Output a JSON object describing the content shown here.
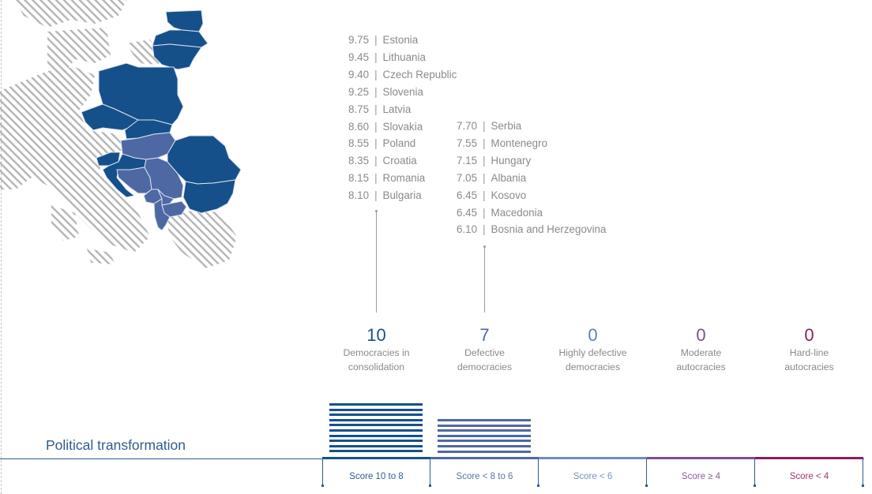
{
  "title": "Political transformation",
  "colors": {
    "dark_blue": "#16508a",
    "medium_blue": "#4e68a3",
    "light_blue": "#5a7fb8",
    "purple": "#7c4e8f",
    "magenta": "#8b1e5f",
    "hatch_gray": "#b5b5b5",
    "text_gray": "#8a8a8a"
  },
  "scores": {
    "consolidation": [
      {
        "score": "9.75",
        "country": "Estonia"
      },
      {
        "score": "9.45",
        "country": "Lithuania"
      },
      {
        "score": "9.40",
        "country": "Czech Republic"
      },
      {
        "score": "9.25",
        "country": "Slovenia"
      },
      {
        "score": "8.75",
        "country": "Latvia"
      },
      {
        "score": "8.60",
        "country": "Slovakia"
      },
      {
        "score": "8.55",
        "country": "Poland"
      },
      {
        "score": "8.35",
        "country": "Croatia"
      },
      {
        "score": "8.15",
        "country": "Romania"
      },
      {
        "score": "8.10",
        "country": "Bulgaria"
      }
    ],
    "defective": [
      {
        "score": "7.70",
        "country": "Serbia"
      },
      {
        "score": "7.55",
        "country": "Montenegro"
      },
      {
        "score": "7.15",
        "country": "Hungary"
      },
      {
        "score": "7.05",
        "country": "Albania"
      },
      {
        "score": "6.45",
        "country": "Kosovo"
      },
      {
        "score": "6.45",
        "country": "Macedonia"
      },
      {
        "score": "6.10",
        "country": "Bosnia and Herzegovina"
      }
    ]
  },
  "categories": [
    {
      "count": "10",
      "label_1": "Democracies in",
      "label_2": "consolidation",
      "range": "Score 10 to 8",
      "color": "#16508a",
      "range_color": "#2a5d93"
    },
    {
      "count": "7",
      "label_1": "Defective",
      "label_2": "democracies",
      "range": "Score < 8 to 6",
      "color": "#4e68a3",
      "range_color": "#5a73a8"
    },
    {
      "count": "0",
      "label_1": "Highly defective",
      "label_2": "democracies",
      "range": "Score < 6",
      "color": "#5a7fb8",
      "range_color": "#7b93bd"
    },
    {
      "count": "0",
      "label_1": "Moderate",
      "label_2": "autocracies",
      "range": "Score ≥ 4",
      "color": "#7c4e8f",
      "range_color": "#8a5a9a"
    },
    {
      "count": "0",
      "label_1": "Hard-line",
      "label_2": "autocracies",
      "range": "Score < 4",
      "color": "#8b1e5f",
      "range_color": "#9a3a72"
    }
  ],
  "chart_data": {
    "type": "bar",
    "title": "Political transformation",
    "categories": [
      "Democracies in consolidation",
      "Defective democracies",
      "Highly defective democracies",
      "Moderate autocracies",
      "Hard-line autocracies"
    ],
    "score_ranges": [
      "Score 10 to 8",
      "Score < 8 to 6",
      "Score < 6",
      "Score ≥ 4",
      "Score < 4"
    ],
    "values": [
      10,
      7,
      0,
      0,
      0
    ],
    "xlabel": "",
    "ylabel": "",
    "grid": false,
    "country_scores": {
      "Estonia": 9.75,
      "Lithuania": 9.45,
      "Czech Republic": 9.4,
      "Slovenia": 9.25,
      "Latvia": 8.75,
      "Slovakia": 8.6,
      "Poland": 8.55,
      "Croatia": 8.35,
      "Romania": 8.15,
      "Bulgaria": 8.1,
      "Serbia": 7.7,
      "Montenegro": 7.55,
      "Hungary": 7.15,
      "Albania": 7.05,
      "Kosovo": 6.45,
      "Macedonia": 6.45,
      "Bosnia and Herzegovina": 6.1
    }
  }
}
